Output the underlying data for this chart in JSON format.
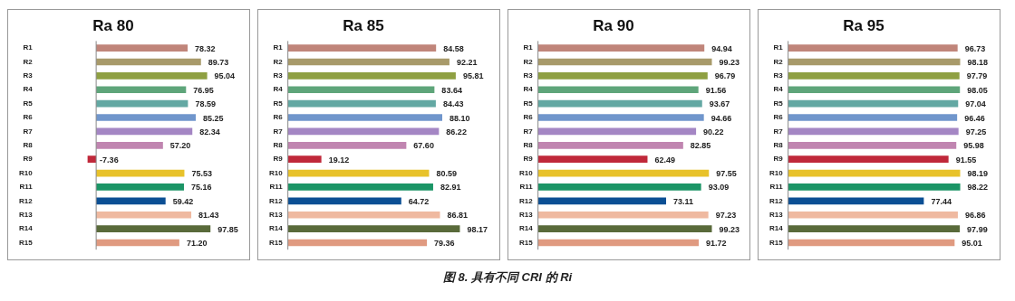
{
  "chart_data": [
    {
      "type": "bar",
      "orientation": "horizontal",
      "title": "Ra 80",
      "categories": [
        "R1",
        "R2",
        "R3",
        "R4",
        "R5",
        "R6",
        "R7",
        "R8",
        "R9",
        "R10",
        "R11",
        "R12",
        "R13",
        "R14",
        "R15"
      ],
      "values": [
        78.32,
        89.73,
        95.04,
        76.95,
        78.59,
        85.25,
        82.34,
        57.2,
        -7.36,
        75.53,
        75.16,
        59.42,
        81.43,
        97.85,
        71.2
      ],
      "value_labels": [
        "78.32",
        "89.73",
        "95.04",
        "76.95",
        "78.59",
        "85.25",
        "82.34",
        "57.20",
        "-7.36",
        "75.53",
        "75.16",
        "59.42",
        "81.43",
        "97.85",
        "71.20"
      ],
      "colors": [
        "#c0857a",
        "#a89a6a",
        "#8fa042",
        "#5ea57a",
        "#63a8a3",
        "#7096cc",
        "#a486c4",
        "#c085b0",
        "#c0283a",
        "#e8c22a",
        "#1b9566",
        "#0b4f94",
        "#efb9a0",
        "#596a3a",
        "#e09a80"
      ],
      "tick_labels": "y",
      "grid": false,
      "annotations": [
        "图 8. 具有不同 CRI 的 Ri"
      ]
    },
    {
      "type": "bar",
      "orientation": "horizontal",
      "title": "Ra 85",
      "categories": [
        "R1",
        "R2",
        "R3",
        "R4",
        "R5",
        "R6",
        "R7",
        "R8",
        "R9",
        "R10",
        "R11",
        "R12",
        "R13",
        "R14",
        "R15"
      ],
      "values": [
        84.58,
        92.21,
        95.81,
        83.64,
        84.43,
        88.1,
        86.22,
        67.6,
        19.12,
        80.59,
        82.91,
        64.72,
        86.81,
        98.17,
        79.36
      ],
      "value_labels": [
        "84.58",
        "92.21",
        "95.81",
        "83.64",
        "84.43",
        "88.10",
        "86.22",
        "67.60",
        "19.12",
        "80.59",
        "82.91",
        "64.72",
        "86.81",
        "98.17",
        "79.36"
      ],
      "colors": [
        "#c0857a",
        "#a89a6a",
        "#8fa042",
        "#5ea57a",
        "#63a8a3",
        "#7096cc",
        "#a486c4",
        "#c085b0",
        "#c0283a",
        "#e8c22a",
        "#1b9566",
        "#0b4f94",
        "#efb9a0",
        "#596a3a",
        "#e09a80"
      ],
      "tick_labels": "y",
      "grid": false
    },
    {
      "type": "bar",
      "orientation": "horizontal",
      "title": "Ra 90",
      "categories": [
        "R1",
        "R2",
        "R3",
        "R4",
        "R5",
        "R6",
        "R7",
        "R8",
        "R9",
        "R10",
        "R11",
        "R12",
        "R13",
        "R14",
        "R15"
      ],
      "values": [
        94.94,
        99.23,
        96.79,
        91.56,
        93.67,
        94.66,
        90.22,
        82.85,
        62.49,
        97.55,
        93.09,
        73.11,
        97.23,
        99.23,
        91.72
      ],
      "value_labels": [
        "94.94",
        "99.23",
        "96.79",
        "91.56",
        "93.67",
        "94.66",
        "90.22",
        "82.85",
        "62.49",
        "97.55",
        "93.09",
        "73.11",
        "97.23",
        "99.23",
        "91.72"
      ],
      "colors": [
        "#c0857a",
        "#a89a6a",
        "#8fa042",
        "#5ea57a",
        "#63a8a3",
        "#7096cc",
        "#a486c4",
        "#c085b0",
        "#c0283a",
        "#e8c22a",
        "#1b9566",
        "#0b4f94",
        "#efb9a0",
        "#596a3a",
        "#e09a80"
      ],
      "tick_labels": "y",
      "grid": false
    },
    {
      "type": "bar",
      "orientation": "horizontal",
      "title": "Ra 95",
      "categories": [
        "R1",
        "R2",
        "R3",
        "R4",
        "R5",
        "R6",
        "R7",
        "R8",
        "R9",
        "R10",
        "R11",
        "R12",
        "R13",
        "R14",
        "R15"
      ],
      "values": [
        96.73,
        98.18,
        97.79,
        98.05,
        97.04,
        96.46,
        97.25,
        95.98,
        91.55,
        98.19,
        98.22,
        77.44,
        96.86,
        97.99,
        95.01
      ],
      "value_labels": [
        "96.73",
        "98.18",
        "97.79",
        "98.05",
        "97.04",
        "96.46",
        "97.25",
        "95.98",
        "91.55",
        "98.19",
        "98.22",
        "77.44",
        "96.86",
        "97.99",
        "95.01"
      ],
      "colors": [
        "#c0857a",
        "#a89a6a",
        "#8fa042",
        "#5ea57a",
        "#63a8a3",
        "#7096cc",
        "#a486c4",
        "#c085b0",
        "#c0283a",
        "#e8c22a",
        "#1b9566",
        "#0b4f94",
        "#efb9a0",
        "#596a3a",
        "#e09a80"
      ],
      "tick_labels": "y",
      "grid": false
    }
  ]
}
